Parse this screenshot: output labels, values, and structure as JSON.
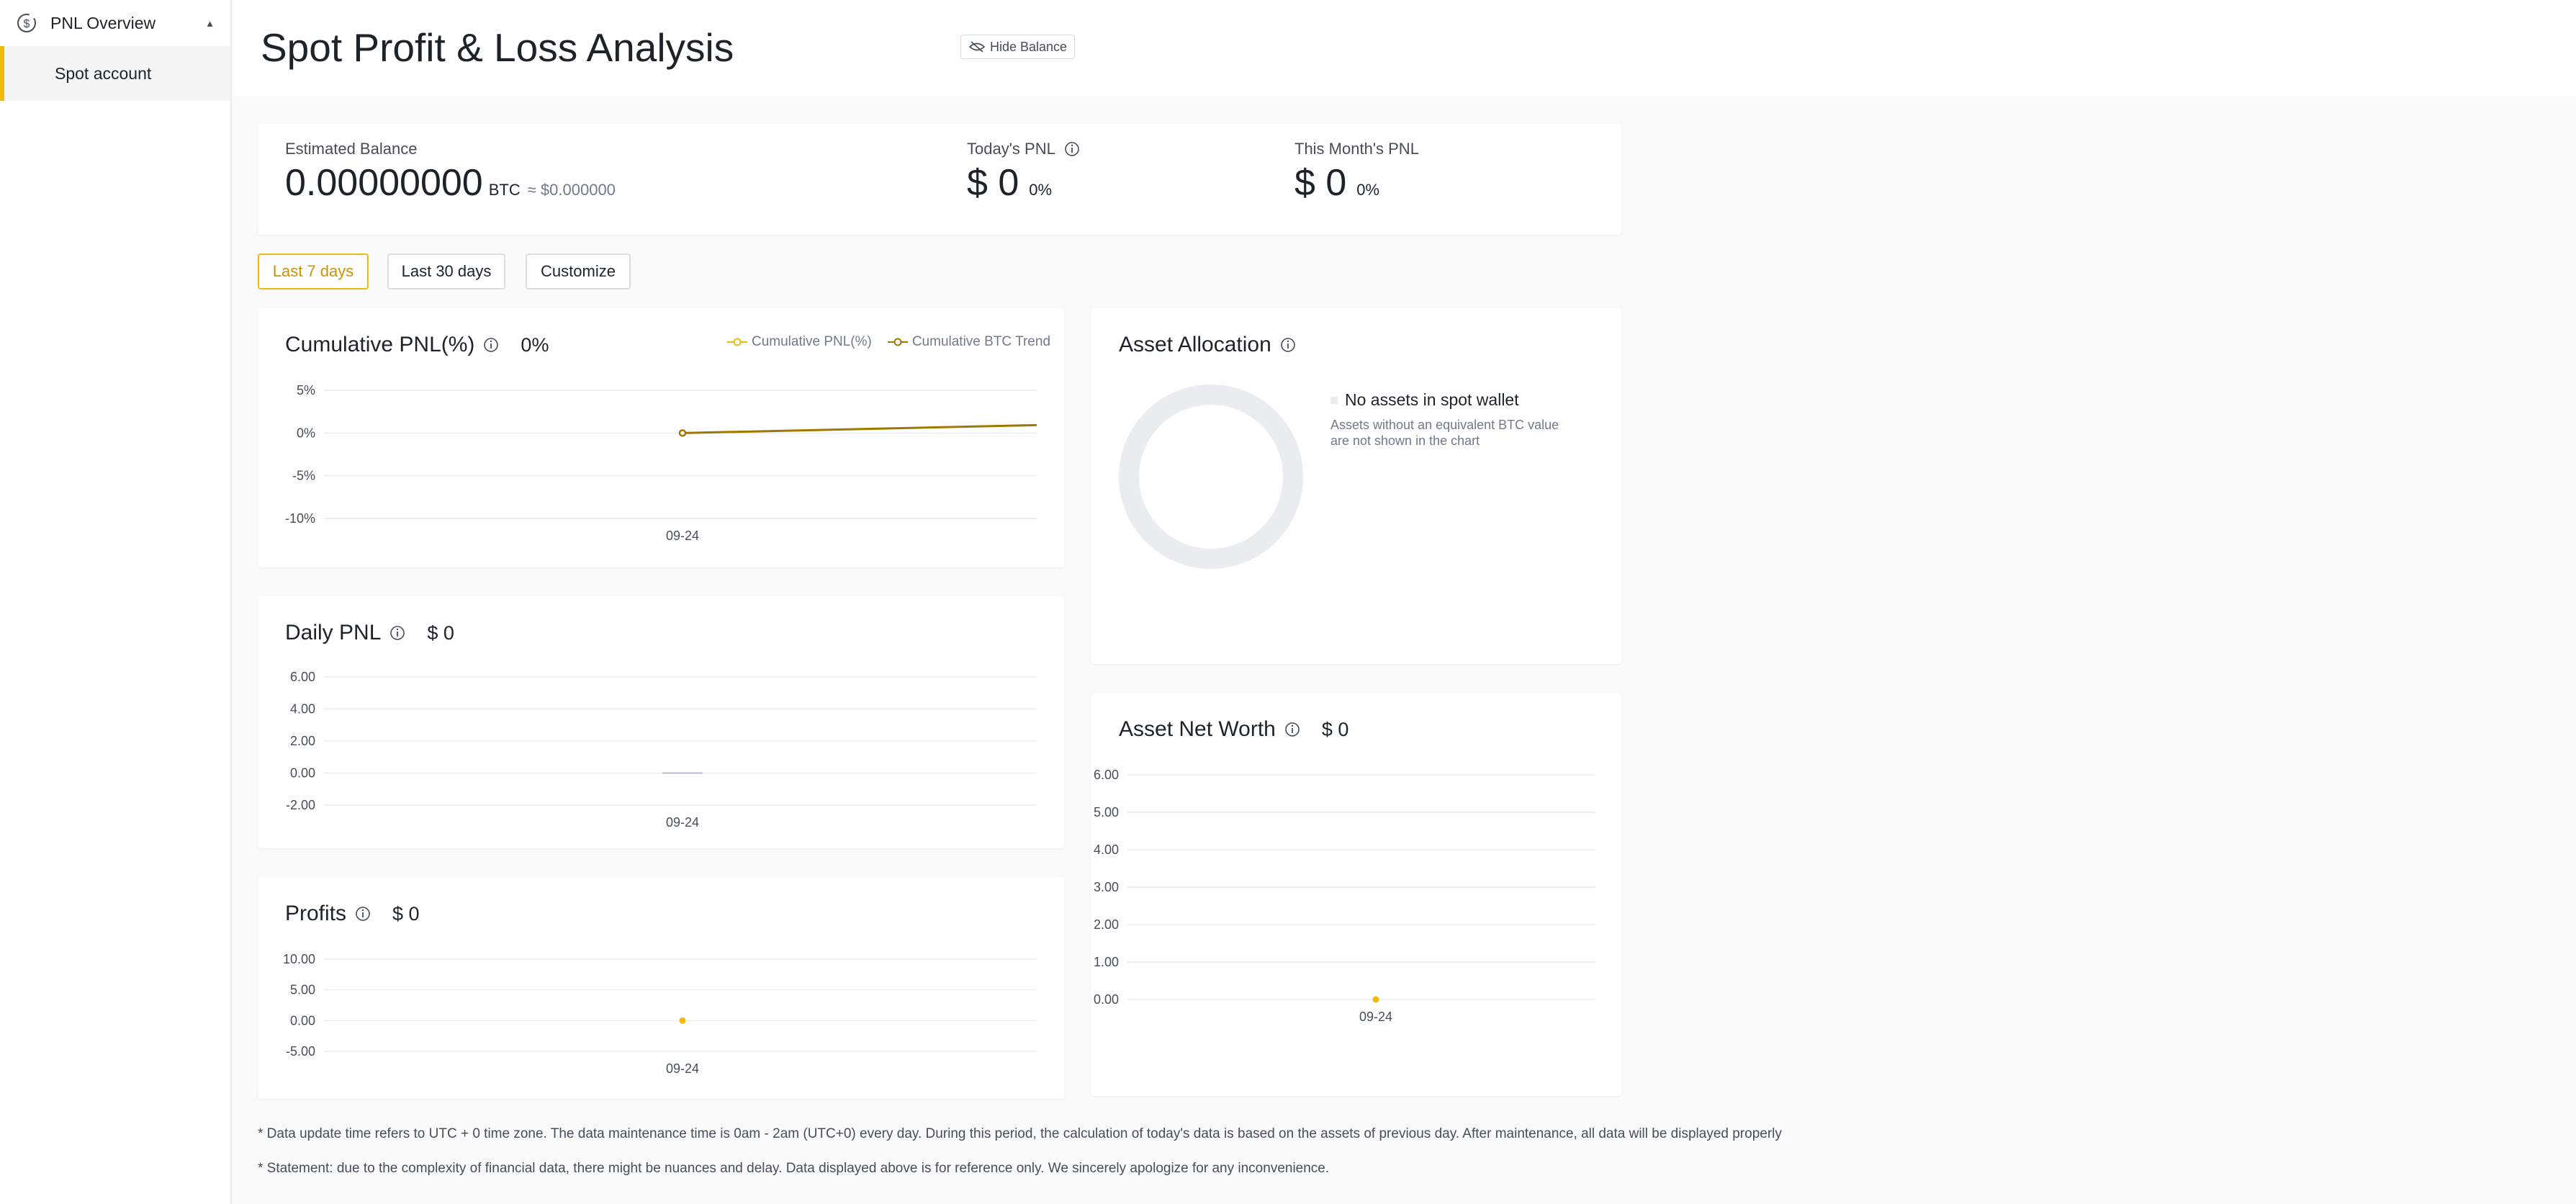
{
  "sidebar": {
    "section_title": "PNL Overview",
    "items": [
      {
        "label": "Spot account",
        "active": true
      }
    ]
  },
  "header": {
    "title": "Spot Profit & Loss Analysis",
    "hide_balance_label": "Hide Balance"
  },
  "summary": {
    "estimated_balance_label": "Estimated Balance",
    "balance_value": "0.00000000",
    "balance_unit": "BTC",
    "balance_usd": "≈ $0.000000",
    "todays_pnl_label": "Today's PNL",
    "todays_pnl_value": "$ 0",
    "todays_pnl_pct": "0%",
    "month_pnl_label": "This Month's PNL",
    "month_pnl_value": "$ 0",
    "month_pnl_pct": "0%"
  },
  "ranges": {
    "last7": "Last 7 days",
    "last30": "Last 30 days",
    "customize": "Customize",
    "selected": "Last 7 days"
  },
  "cumulative": {
    "title": "Cumulative PNL(%)",
    "value": "0%",
    "legend_pnl": "Cumulative PNL(%)",
    "legend_btc": "Cumulative BTC Trend"
  },
  "daily": {
    "title": "Daily PNL",
    "value": "$ 0"
  },
  "profits": {
    "title": "Profits",
    "value": "$ 0"
  },
  "allocation": {
    "title": "Asset Allocation",
    "empty_title": "No assets in spot wallet",
    "empty_note_line1": "Assets without an equivalent BTC value",
    "empty_note_line2": "are not shown in the chart"
  },
  "networth": {
    "title": "Asset Net Worth",
    "value": "$ 0"
  },
  "footnotes": {
    "update_time": "* Data update time refers to UTC + 0 time zone. The data maintenance time is 0am - 2am (UTC+0) every day. During this period, the calculation of today's data is based on the assets of previous day. After maintenance, all data will be displayed properly",
    "statement": "* Statement: due to the complexity of financial data, there might be nuances and delay. Data displayed above is for reference only. We sincerely apologize for any inconvenience."
  },
  "colors": {
    "accent": "#f0b90b",
    "btc_trend": "#a07800",
    "grid": "#eaecef",
    "donut": "#eaecef"
  },
  "chart_data": [
    {
      "type": "line",
      "title": "Cumulative PNL(%)",
      "x": [
        "09-24"
      ],
      "ylim": [
        -10,
        5
      ],
      "y_ticks": [
        "5%",
        "0%",
        "-5%",
        "-10%"
      ],
      "x_ticks": [
        "09-24"
      ],
      "series": [
        {
          "name": "Cumulative PNL(%)",
          "values": [
            0
          ]
        },
        {
          "name": "Cumulative BTC Trend",
          "values": [
            0
          ]
        }
      ],
      "grid": true,
      "legend": "top-right"
    },
    {
      "type": "bar",
      "title": "Daily PNL",
      "categories": [
        "09-24"
      ],
      "values": [
        0
      ],
      "ylim": [
        -2,
        6
      ],
      "y_ticks": [
        "6.00",
        "4.00",
        "2.00",
        "0.00",
        "-2.00"
      ],
      "x_ticks": [
        "09-24"
      ],
      "grid": true
    },
    {
      "type": "line",
      "title": "Profits",
      "x": [
        "09-24"
      ],
      "values": [
        0
      ],
      "ylim": [
        -5,
        10
      ],
      "y_ticks": [
        "10.00",
        "5.00",
        "0.00",
        "-5.00"
      ],
      "x_ticks": [
        "09-24"
      ],
      "grid": true
    },
    {
      "type": "pie",
      "title": "Asset Allocation",
      "slices": []
    },
    {
      "type": "line",
      "title": "Asset Net Worth",
      "x": [
        "09-24"
      ],
      "values": [
        0
      ],
      "ylim": [
        0,
        6
      ],
      "y_ticks": [
        "6.00",
        "5.00",
        "4.00",
        "3.00",
        "2.00",
        "1.00",
        "0.00"
      ],
      "x_ticks": [
        "09-24"
      ],
      "grid": true
    }
  ]
}
